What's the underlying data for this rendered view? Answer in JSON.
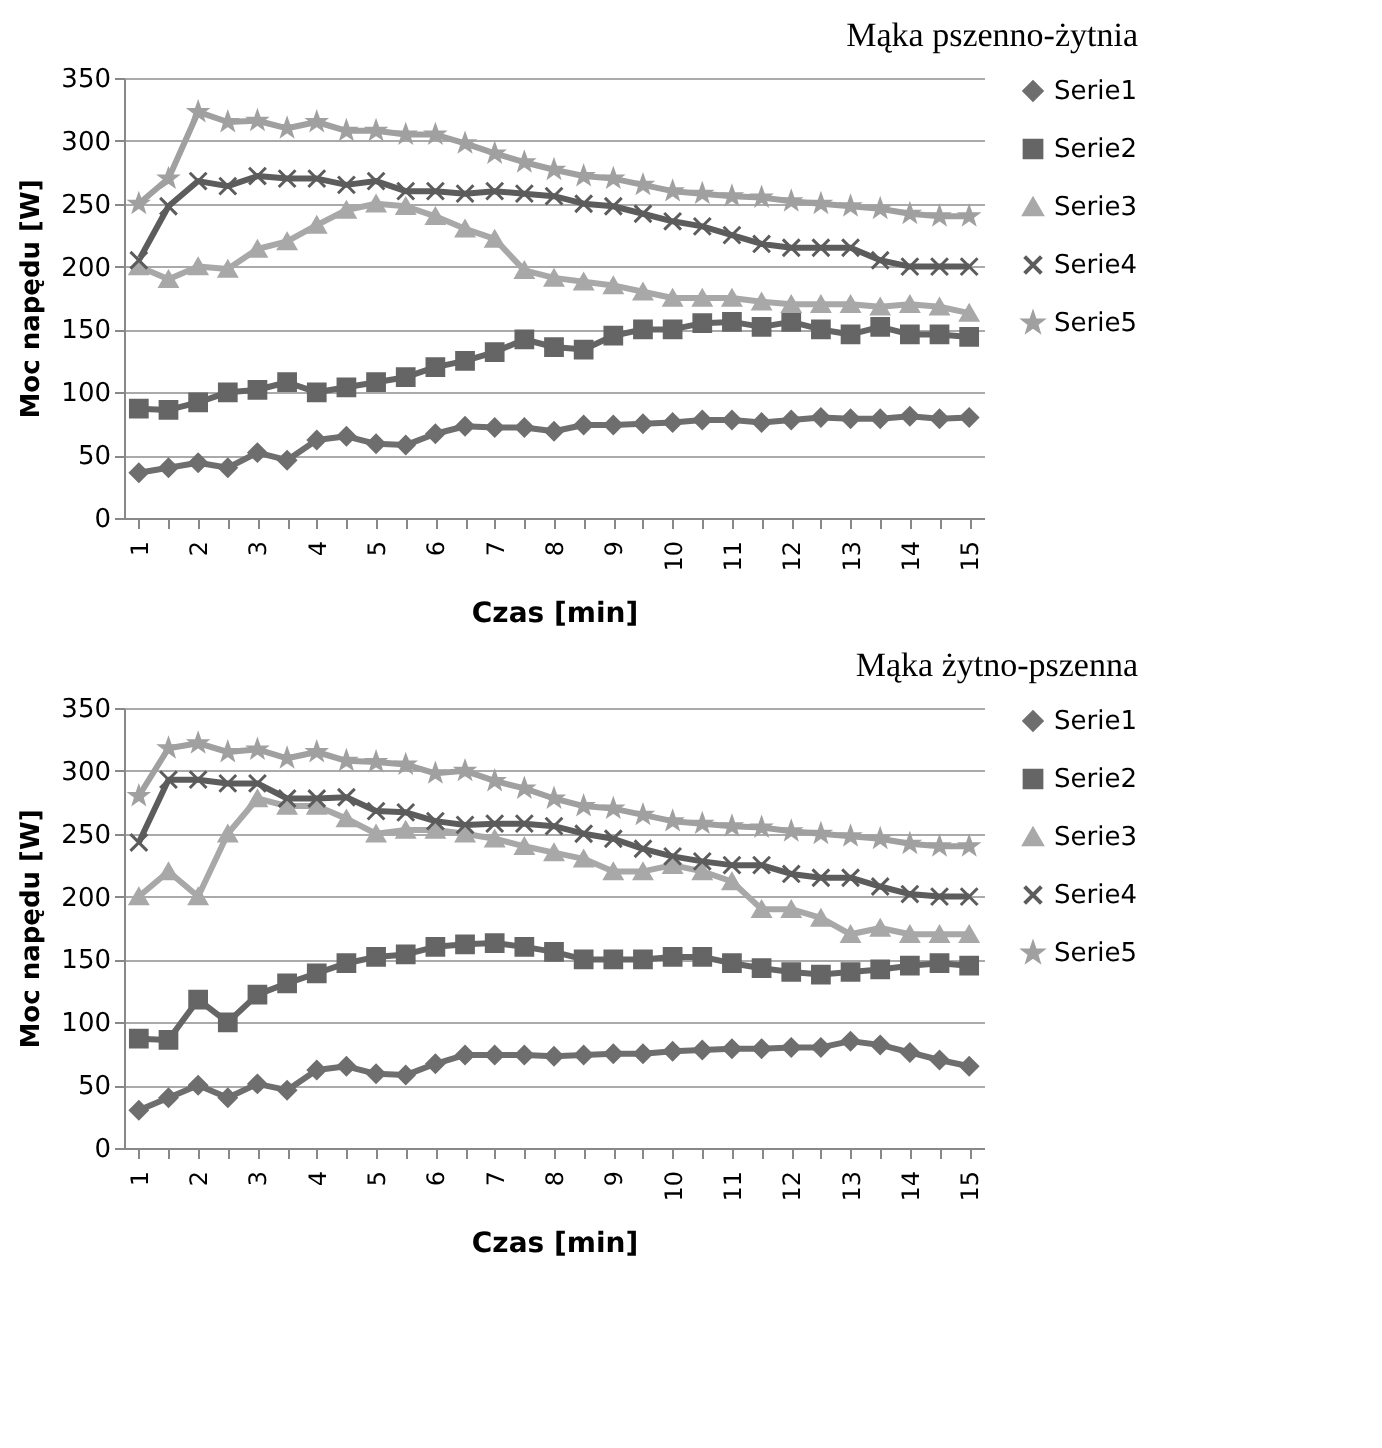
{
  "chart_data": [
    {
      "type": "line",
      "title": "Mąka pszenno-żytnia",
      "xlabel": "Czas [min]",
      "ylabel": "Moc napędu [W]",
      "categories": [
        "1",
        null,
        "2",
        null,
        "3",
        null,
        "4",
        null,
        "5",
        null,
        "6",
        null,
        "7",
        null,
        "8",
        null,
        "9",
        null,
        "10",
        null,
        "11",
        null,
        "12",
        null,
        "13",
        null,
        "14",
        null,
        "15"
      ],
      "series": [
        {
          "name": "Serie1",
          "color": "#6e6e6e",
          "marker": "diamond",
          "values": [
            36,
            40,
            44,
            40,
            52,
            46,
            62,
            65,
            59,
            58,
            67,
            73,
            72,
            72,
            69,
            74,
            74,
            75,
            76,
            78,
            78,
            76,
            78,
            80,
            79,
            79,
            81,
            79,
            80
          ]
        },
        {
          "name": "Serie2",
          "color": "#656565",
          "marker": "square",
          "values": [
            87,
            86,
            92,
            100,
            102,
            108,
            100,
            104,
            108,
            112,
            120,
            125,
            132,
            142,
            136,
            134,
            145,
            150,
            150,
            155,
            156,
            152,
            156,
            150,
            146,
            152,
            146,
            146,
            144
          ]
        },
        {
          "name": "Serie3",
          "color": "#a8a8a8",
          "marker": "triangle",
          "values": [
            200,
            190,
            200,
            198,
            214,
            220,
            233,
            245,
            250,
            248,
            240,
            230,
            222,
            197,
            191,
            188,
            185,
            180,
            175,
            175,
            175,
            172,
            170,
            170,
            170,
            168,
            170,
            168,
            163
          ]
        },
        {
          "name": "Serie4",
          "color": "#5c5c5c",
          "marker": "cross",
          "values": [
            205,
            248,
            268,
            264,
            272,
            270,
            270,
            265,
            268,
            260,
            260,
            258,
            260,
            258,
            256,
            250,
            248,
            242,
            236,
            232,
            225,
            218,
            215,
            215,
            215,
            205,
            200,
            200,
            200
          ]
        },
        {
          "name": "Serie5",
          "color": "#a0a0a0",
          "marker": "star",
          "values": [
            250,
            270,
            323,
            315,
            316,
            310,
            315,
            308,
            308,
            305,
            305,
            298,
            290,
            283,
            277,
            272,
            270,
            265,
            260,
            258,
            256,
            255,
            252,
            250,
            248,
            246,
            242,
            240,
            240
          ]
        }
      ],
      "ylim": [
        0,
        350
      ],
      "yticks": [
        0,
        50,
        100,
        150,
        200,
        250,
        300,
        350
      ],
      "grid": "y",
      "legend": "right"
    },
    {
      "type": "line",
      "title": "Mąka żytno-pszenna",
      "xlabel": "Czas [min]",
      "ylabel": "Moc napędu [W]",
      "categories": [
        "1",
        null,
        "2",
        null,
        "3",
        null,
        "4",
        null,
        "5",
        null,
        "6",
        null,
        "7",
        null,
        "8",
        null,
        "9",
        null,
        "10",
        null,
        "11",
        null,
        "12",
        null,
        "13",
        null,
        "14",
        null,
        "15"
      ],
      "series": [
        {
          "name": "Serie1",
          "color": "#6e6e6e",
          "marker": "diamond",
          "values": [
            30,
            40,
            50,
            40,
            51,
            46,
            62,
            65,
            59,
            58,
            67,
            74,
            74,
            74,
            73,
            74,
            75,
            75,
            77,
            78,
            79,
            79,
            80,
            80,
            85,
            82,
            76,
            70,
            65
          ]
        },
        {
          "name": "Serie2",
          "color": "#656565",
          "marker": "square",
          "values": [
            87,
            86,
            118,
            100,
            122,
            131,
            139,
            147,
            152,
            154,
            160,
            162,
            163,
            160,
            156,
            150,
            150,
            150,
            152,
            152,
            147,
            143,
            140,
            138,
            140,
            142,
            145,
            147,
            145
          ]
        },
        {
          "name": "Serie3",
          "color": "#a8a8a8",
          "marker": "triangle",
          "values": [
            200,
            220,
            200,
            250,
            278,
            272,
            272,
            262,
            250,
            253,
            253,
            250,
            246,
            240,
            235,
            230,
            220,
            220,
            225,
            220,
            212,
            190,
            190,
            183,
            170,
            175,
            170,
            170,
            170
          ]
        },
        {
          "name": "Serie4",
          "color": "#5c5c5c",
          "marker": "cross",
          "values": [
            243,
            293,
            293,
            290,
            290,
            278,
            278,
            279,
            268,
            267,
            260,
            257,
            258,
            258,
            256,
            250,
            246,
            238,
            232,
            228,
            225,
            225,
            218,
            215,
            215,
            208,
            202,
            200,
            200
          ]
        },
        {
          "name": "Serie5",
          "color": "#a0a0a0",
          "marker": "star",
          "values": [
            280,
            318,
            322,
            315,
            317,
            310,
            315,
            308,
            307,
            305,
            298,
            300,
            292,
            286,
            278,
            272,
            270,
            265,
            260,
            258,
            256,
            255,
            252,
            250,
            248,
            246,
            242,
            240,
            240
          ]
        }
      ],
      "ylim": [
        0,
        350
      ],
      "yticks": [
        0,
        50,
        100,
        150,
        200,
        250,
        300,
        350
      ],
      "grid": "y",
      "legend": "right"
    }
  ]
}
